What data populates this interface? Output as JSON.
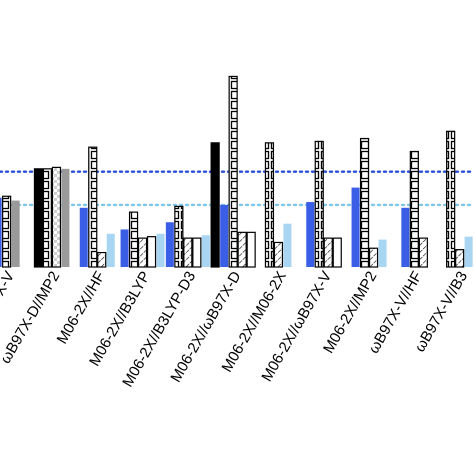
{
  "chart_data": {
    "type": "bar",
    "categories": [
      "X-V",
      "ωB97X-D//MP2",
      "M06-2X//HF",
      "M06-2X//B3LYP",
      "M06-2X//B3LYP-D3",
      "M06-2X//ωB97X-D",
      "M06-2X//M06-2X",
      "M06-2X//ωB97X-V",
      "M06-2X//MP2",
      "ωB97X-V//HF",
      "ωB97X-V//B3"
    ],
    "series": [
      {
        "style": "black",
        "values": [
          null,
          6.8,
          null,
          null,
          null,
          8.6,
          null,
          null,
          null,
          null,
          null
        ]
      },
      {
        "style": "blue",
        "values": [
          4.8,
          null,
          4.1,
          2.6,
          3.1,
          4.3,
          null,
          4.5,
          5.5,
          4.1,
          null
        ]
      },
      {
        "style": "square-pattern",
        "values": [
          4.9,
          6.8,
          8.3,
          3.8,
          4.2,
          13.2,
          8.6,
          8.7,
          8.9,
          8.0,
          9.4
        ]
      },
      {
        "style": "light-pattern",
        "values": [
          null,
          6.9,
          null,
          null,
          null,
          null,
          null,
          null,
          null,
          null,
          null
        ]
      },
      {
        "style": "diagonal-hatch",
        "values": [
          null,
          null,
          1.0,
          2.0,
          2.0,
          2.4,
          1.7,
          2.0,
          1.3,
          2.0,
          1.2
        ]
      },
      {
        "style": "white",
        "values": [
          null,
          null,
          null,
          2.1,
          2.0,
          2.4,
          null,
          2.0,
          null,
          null,
          null
        ]
      },
      {
        "style": "grey",
        "values": [
          4.6,
          6.8,
          null,
          null,
          null,
          null,
          null,
          null,
          null,
          null,
          null
        ]
      },
      {
        "style": "lightblue",
        "values": [
          null,
          null,
          2.3,
          2.3,
          2.2,
          null,
          3.0,
          null,
          1.9,
          null,
          2.1
        ]
      }
    ],
    "reference_lines": [
      {
        "style": "dotted",
        "color": "#2a4ed8",
        "value": 6.6
      },
      {
        "style": "dotted",
        "color": "#7fc4ea",
        "value": 4.3
      }
    ],
    "colors": {
      "black": "#000000",
      "blue": "#3a5ee6",
      "grey": "#9a9a9a",
      "lightblue": "#a7d5f2",
      "outline": "#000000"
    },
    "ylim": [
      0,
      14.2
    ],
    "grid": false,
    "legend": "none"
  }
}
